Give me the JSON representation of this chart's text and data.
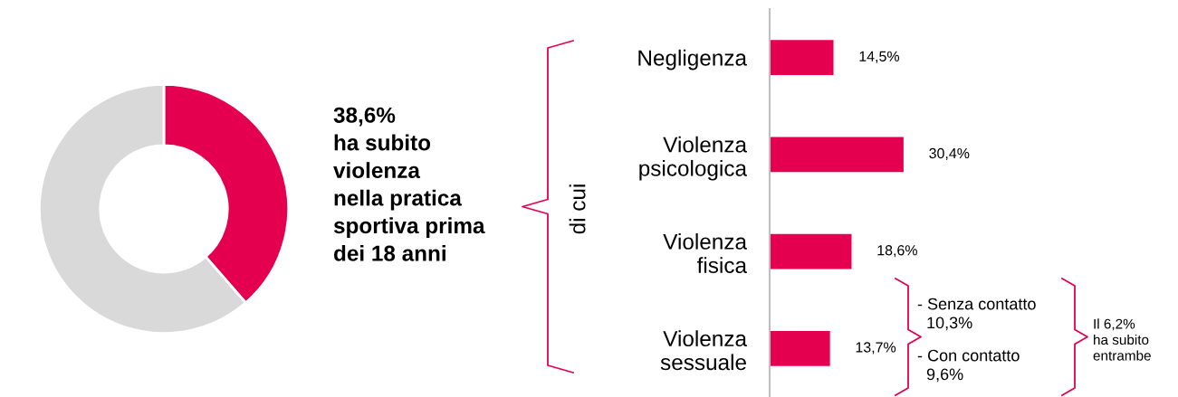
{
  "chart_data": [
    {
      "type": "donut",
      "categories": [
        null,
        null
      ],
      "values": [
        38.6,
        61.4
      ],
      "colors": [
        "#e5004f",
        "#d9d9d9"
      ],
      "annotations": [
        "38,6%\nha subito\nviolenza\nnella pratica\nsportiva prima\ndei 18 anni"
      ]
    },
    {
      "type": "bar",
      "orientation": "horizontal",
      "color": "#e5004f",
      "tick_labels": "y",
      "categories": [
        "Negligenza",
        "Violenza\npsicologica",
        "Violenza\nfisica",
        "Violenza\nsessuale"
      ],
      "values": [
        14.5,
        30.4,
        18.6,
        13.7
      ],
      "value_labels": [
        "14,5%",
        "30,4%",
        "18,6%",
        "13,7%"
      ],
      "annotations": [
        "di cui",
        "- Senza contatto\n  10,3%",
        "- Con contatto\n  9,6%",
        "Il 6,2%\nha subito\nentrambe"
      ]
    }
  ]
}
